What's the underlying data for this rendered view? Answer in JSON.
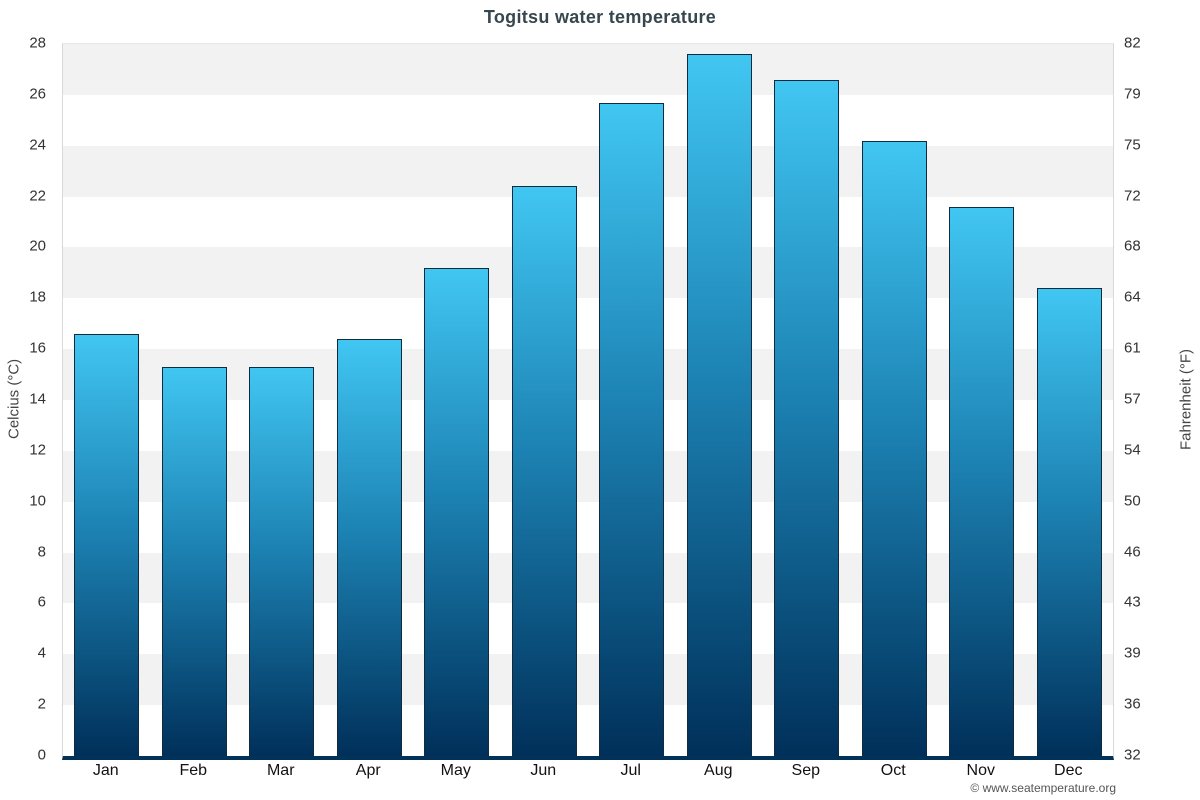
{
  "chart_data": {
    "type": "bar",
    "title": "Togitsu water temperature",
    "categories": [
      "Jan",
      "Feb",
      "Mar",
      "Apr",
      "May",
      "Jun",
      "Jul",
      "Aug",
      "Sep",
      "Oct",
      "Nov",
      "Dec"
    ],
    "values": [
      16.6,
      15.3,
      15.3,
      16.4,
      19.2,
      22.4,
      25.7,
      27.6,
      26.6,
      24.2,
      21.6,
      18.4
    ],
    "ylabel_left": "Celcius (°C)",
    "ylabel_right": "Fahrenheit (°F)",
    "ylim": [
      0,
      28
    ],
    "ytick_step": 2,
    "yticks_left": [
      0,
      2,
      4,
      6,
      8,
      10,
      12,
      14,
      16,
      18,
      20,
      22,
      24,
      26,
      28
    ],
    "yticks_right": [
      32,
      36,
      39,
      43,
      46,
      50,
      54,
      57,
      61,
      64,
      68,
      72,
      75,
      79,
      82
    ],
    "grid": "alternating-horizontal-bands",
    "legend": "none",
    "bar_gradient_top": "#41c6f2",
    "bar_gradient_bottom": "#00305a",
    "axis_baseline_color": "#00325a"
  },
  "footer": {
    "copyright": "© www.seatemperature.org"
  }
}
